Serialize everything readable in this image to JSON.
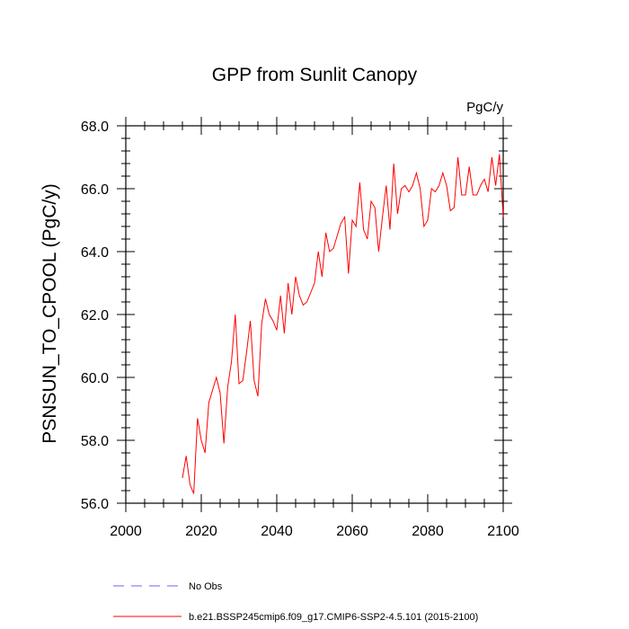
{
  "chart_data": {
    "type": "line",
    "title": "GPP from Sunlit Canopy",
    "units": "PgC/y",
    "ylabel": "PSNSUN_TO_CPOOL  (PgC/y)",
    "xlabel": "",
    "xlim": [
      2000,
      2100
    ],
    "ylim": [
      56.0,
      68.0
    ],
    "xticks": [
      2000,
      2020,
      2040,
      2060,
      2080,
      2100
    ],
    "xtick_labels": [
      "2000",
      "2020",
      "2040",
      "2060",
      "2080",
      "2100"
    ],
    "yticks": [
      56.0,
      58.0,
      60.0,
      62.0,
      64.0,
      66.0,
      68.0
    ],
    "ytick_labels": [
      "56.0",
      "58.0",
      "60.0",
      "62.0",
      "64.0",
      "66.0",
      "68.0"
    ],
    "series": [
      {
        "name": "b.e21.BSSP245cmip6.f09_g17.CMIP6-SSP2-4.5.101 (2015-2100)",
        "color": "#ff0000",
        "style": "solid",
        "x": [
          2015,
          2016,
          2017,
          2018,
          2019,
          2020,
          2021,
          2022,
          2023,
          2024,
          2025,
          2026,
          2027,
          2028,
          2029,
          2030,
          2031,
          2032,
          2033,
          2034,
          2035,
          2036,
          2037,
          2038,
          2039,
          2040,
          2041,
          2042,
          2043,
          2044,
          2045,
          2046,
          2047,
          2048,
          2049,
          2050,
          2051,
          2052,
          2053,
          2054,
          2055,
          2056,
          2057,
          2058,
          2059,
          2060,
          2061,
          2062,
          2063,
          2064,
          2065,
          2066,
          2067,
          2068,
          2069,
          2070,
          2071,
          2072,
          2073,
          2074,
          2075,
          2076,
          2077,
          2078,
          2079,
          2080,
          2081,
          2082,
          2083,
          2084,
          2085,
          2086,
          2087,
          2088,
          2089,
          2090,
          2091,
          2092,
          2093,
          2094,
          2095,
          2096,
          2097,
          2098,
          2099,
          2100
        ],
        "values": [
          56.8,
          57.5,
          56.6,
          56.3,
          58.7,
          58.0,
          57.6,
          59.2,
          59.6,
          60.0,
          59.5,
          57.9,
          59.7,
          60.5,
          62.0,
          59.8,
          59.9,
          60.8,
          61.8,
          59.9,
          59.4,
          61.7,
          62.5,
          62.0,
          61.8,
          61.5,
          62.6,
          61.4,
          63.0,
          62.0,
          63.2,
          62.6,
          62.3,
          62.4,
          62.7,
          63.0,
          64.0,
          63.2,
          64.6,
          64.0,
          64.1,
          64.5,
          64.9,
          65.1,
          63.3,
          65.0,
          64.8,
          66.2,
          64.7,
          64.4,
          65.6,
          65.4,
          64.0,
          65.1,
          66.1,
          64.7,
          66.8,
          65.2,
          66.0,
          66.1,
          65.9,
          66.1,
          66.5,
          66.0,
          64.8,
          65.0,
          66.0,
          65.9,
          66.1,
          66.5,
          66.1,
          65.3,
          65.4,
          67.0,
          65.8,
          65.8,
          66.7,
          65.8,
          65.8,
          66.1,
          66.3,
          65.9,
          67.0,
          66.1,
          67.1,
          65.1
        ]
      },
      {
        "name": "No Obs",
        "color": "#0000ff",
        "style": "dashed",
        "x": [],
        "values": []
      }
    ],
    "legend": {
      "entries": [
        "No Obs",
        "b.e21.BSSP245cmip6.f09_g17.CMIP6-SSP2-4.5.101 (2015-2100)"
      ],
      "placement": "bottom-left"
    }
  }
}
